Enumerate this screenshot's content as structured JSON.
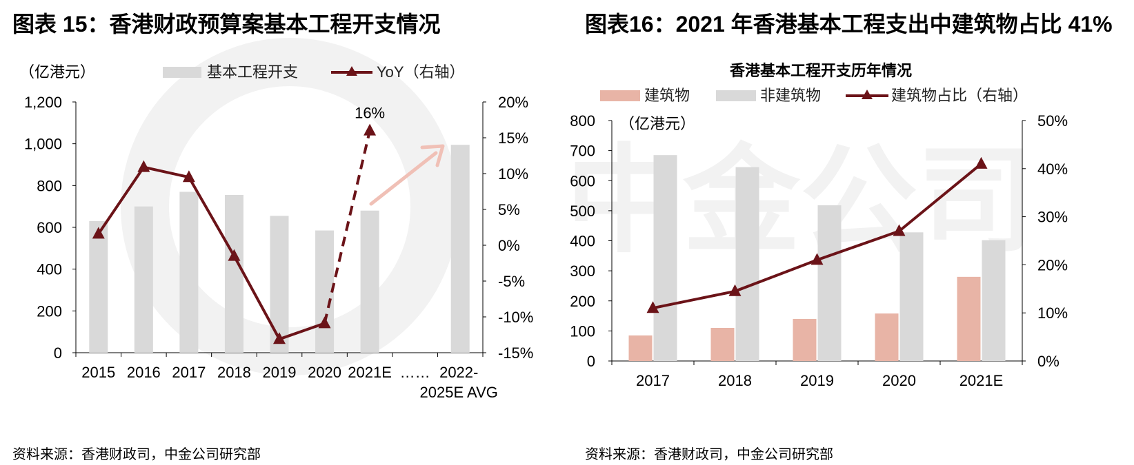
{
  "panel1": {
    "figure_title": "图表 15：香港财政预算案基本工程开支情况",
    "source": "资料来源：香港财政司，中金公司研究部"
  },
  "panel2": {
    "figure_title": "图表16：2021 年香港基本工程支出中建筑物占比 41%",
    "source": "资料来源：香港财政司，中金公司研究部"
  },
  "colors": {
    "bar_grey": "#d9d9d9",
    "line_dark": "#6b1318",
    "bar_pink": "#e8b4a6",
    "arrow_pink": "#f0c0b6",
    "watermark": "#f2f2f2"
  },
  "watermark_text": "中金公司",
  "chart_data": [
    {
      "type": "bar",
      "title": "",
      "unit_label": "（亿港元）",
      "categories": [
        "2015",
        "2016",
        "2017",
        "2018",
        "2019",
        "2020",
        "2021E",
        "……",
        "2022-\n2025E AVG"
      ],
      "series": [
        {
          "name": "基本工程开支",
          "kind": "bar",
          "axis": "left",
          "values": [
            630,
            700,
            770,
            755,
            655,
            585,
            680,
            null,
            995
          ]
        },
        {
          "name": "YoY（右轴）",
          "kind": "line",
          "axis": "right",
          "values": [
            1.6,
            10.9,
            9.5,
            -1.5,
            -13.1,
            -10.9,
            16.0,
            null,
            null
          ],
          "data_labels": {
            "6": "16%"
          }
        }
      ],
      "ylim_left": [
        0,
        1200
      ],
      "yticks_left": [
        "0",
        "200",
        "400",
        "600",
        "800",
        "1,000",
        "1,200"
      ],
      "ylim_right": [
        -15,
        20
      ],
      "yticks_right": [
        "-15%",
        "-10%",
        "-5%",
        "0%",
        "5%",
        "10%",
        "15%",
        "20%"
      ],
      "legend": [
        "基本工程开支",
        "YoY（右轴）"
      ],
      "legend_position": "top"
    },
    {
      "type": "bar",
      "title": "香港基本工程开支历年情况",
      "unit_label": "（亿港元）",
      "categories": [
        "2017",
        "2018",
        "2019",
        "2020",
        "2021E"
      ],
      "series": [
        {
          "name": "建筑物",
          "kind": "bar",
          "axis": "left",
          "values": [
            85,
            110,
            140,
            158,
            280
          ]
        },
        {
          "name": "非建筑物",
          "kind": "bar",
          "axis": "left",
          "values": [
            685,
            645,
            518,
            428,
            402
          ]
        },
        {
          "name": "建筑物占比（右轴）",
          "kind": "line",
          "axis": "right",
          "values": [
            11.0,
            14.5,
            21.0,
            27.0,
            41.0
          ]
        }
      ],
      "ylim_left": [
        0,
        800
      ],
      "yticks_left": [
        "0",
        "100",
        "200",
        "300",
        "400",
        "500",
        "600",
        "700",
        "800"
      ],
      "ylim_right": [
        0,
        50
      ],
      "yticks_right": [
        "0%",
        "10%",
        "20%",
        "30%",
        "40%",
        "50%"
      ],
      "legend": [
        "建筑物",
        "非建筑物",
        "建筑物占比（右轴）"
      ],
      "legend_position": "top"
    }
  ]
}
